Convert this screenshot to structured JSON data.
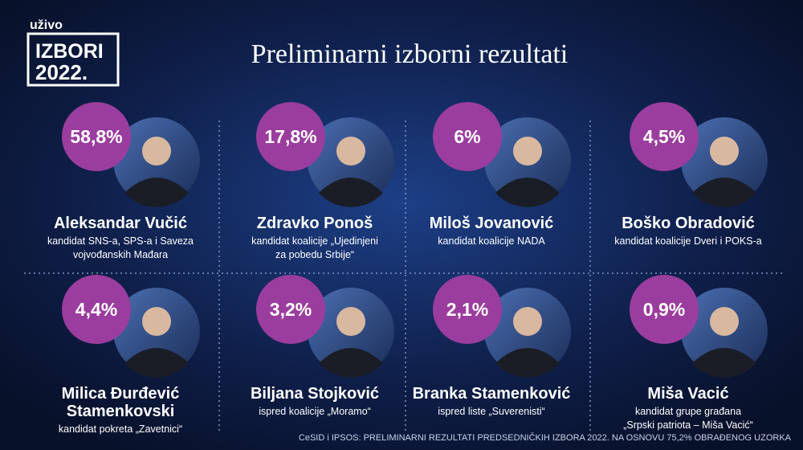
{
  "header": {
    "live": "uživo",
    "badge_line1": "IZBORI",
    "badge_line2": "2022.",
    "title": "Preliminarni izborni rezultati"
  },
  "candidates": [
    {
      "percent": "58,8%",
      "name": [
        "Aleksandar Vučić"
      ],
      "description": [
        "kandidat SNS-a, SPS-a i Saveza",
        "vojvođanskih Mađara"
      ]
    },
    {
      "percent": "17,8%",
      "name": [
        "Zdravko Ponoš"
      ],
      "description": [
        "kandidat koalicije „Ujedinjeni",
        "za pobedu Srbije“"
      ]
    },
    {
      "percent": "6%",
      "name": [
        "Miloš Jovanović"
      ],
      "description": [
        "kandidat koalicije NADA"
      ]
    },
    {
      "percent": "4,5%",
      "name": [
        "Boško Obradović"
      ],
      "description": [
        "kandidat koalicije Dveri i POKS-a"
      ]
    },
    {
      "percent": "4,4%",
      "name": [
        "Milica Đurđević",
        "Stamenkovski"
      ],
      "description": [
        "kandidat pokreta „Zavetnici“"
      ]
    },
    {
      "percent": "3,2%",
      "name": [
        "Biljana Stojković"
      ],
      "description": [
        "ispred koalicije „Moramo“"
      ]
    },
    {
      "percent": "2,1%",
      "name": [
        "Branka Stamenković"
      ],
      "description": [
        "ispred liste „Suverenisti“"
      ]
    },
    {
      "percent": "0,9%",
      "name": [
        "Miša Vacić"
      ],
      "description": [
        "kandidat grupe građana",
        "„Srpski patriota – Miša Vacić“"
      ]
    }
  ],
  "footer": "CeSID i IPSOS: PRELIMINARNI REZULTATI PREDSEDNIČKIH IZBORA 2022. NA OSNOVU 75,2% OBRAĐENOG UZORKA"
}
